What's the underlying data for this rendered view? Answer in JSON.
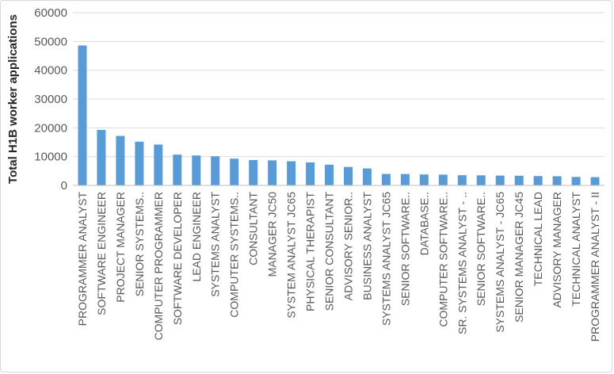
{
  "chart_data": {
    "type": "bar",
    "title": "",
    "xlabel": "",
    "ylabel": "Total H1B worker applications",
    "categories": [
      "PROGRAMMER ANALYST",
      "SOFTWARE ENGINEER",
      "PROJECT MANAGER",
      "SENIOR SYSTEMS..",
      "COMPUTER PROGRAMMER",
      "SOFTWARE DEVELOPER",
      "LEAD ENGINEER",
      "SYSTEMS ANALYST",
      "COMPUTER SYSTEMS..",
      "CONSULTANT",
      "MANAGER JC50",
      "SYSTEM ANALYST JC65",
      "PHYSICAL THERAPIST",
      "SENIOR CONSULTANT",
      "ADVISORY SENIOR..",
      "BUSINESS ANALYST",
      "SYSTEMS ANALYST JC65",
      "SENIOR SOFTWARE..",
      "DATABASE..",
      "COMPUTER SOFTWARE..",
      "SR. SYSTEMS ANALYST - ..",
      "SENIOR SOFTWARE..",
      "SYSTEMS ANALYST - JC65",
      "SENIOR MANAGER JC45",
      "TECHNICAL LEAD",
      "ADVISORY MANAGER",
      "TECHNICAL ANALYST",
      "PROGRAMMER ANALYST - II"
    ],
    "values": [
      48600,
      19300,
      17200,
      15200,
      14200,
      10700,
      10400,
      10100,
      9300,
      8800,
      8700,
      8400,
      8000,
      7200,
      6400,
      5900,
      4000,
      3950,
      3800,
      3750,
      3550,
      3500,
      3400,
      3350,
      3250,
      3200,
      2950,
      2850
    ],
    "ylim": [
      0,
      60000
    ],
    "yticks": [
      0,
      10000,
      20000,
      30000,
      40000,
      50000,
      60000
    ],
    "grid": "horizontal",
    "legend": "none",
    "colors": {
      "bar": "#5B9BD5",
      "gridline": "#D9D9D9",
      "axis_line": "#BFBFBF",
      "tick_label": "#595959",
      "axis_title": "#262626",
      "frame_border": "#D7D7D7"
    }
  }
}
